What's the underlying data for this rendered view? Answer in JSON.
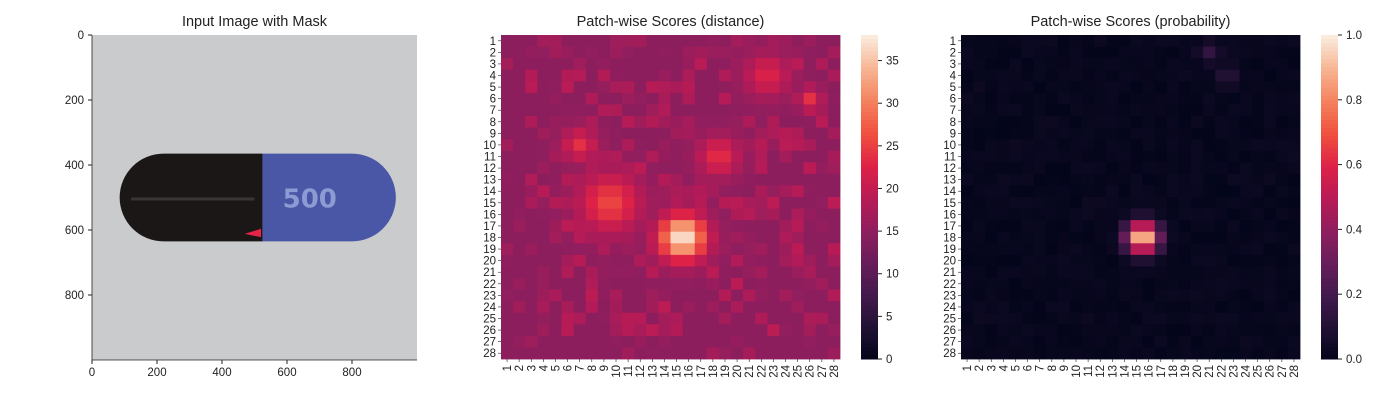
{
  "colors": {
    "background": "#ffffff",
    "axis": "#222222",
    "capsule_black": "#1c1717",
    "capsule_blue": "#4a56a6",
    "imprint": "#8c9bd2",
    "mask_mark": "#e8234a"
  },
  "chart_data": [
    {
      "type": "image",
      "title": "Input Image with Mask",
      "xticks": [
        0,
        200,
        400,
        600,
        800
      ],
      "yticks": [
        0,
        200,
        400,
        600,
        800
      ],
      "xlim": [
        0,
        1000
      ],
      "ylim": [
        1000,
        0
      ],
      "imprint_text": "500"
    },
    {
      "type": "heatmap",
      "title": "Patch-wise Scores (distance)",
      "rows": 28,
      "cols": 28,
      "colorbar": {
        "ticks": [
          0,
          5,
          10,
          15,
          20,
          25,
          30,
          35
        ],
        "range": [
          0,
          38
        ]
      },
      "colormap": "rocket",
      "baseline": 15,
      "hotspots": [
        {
          "row": 18,
          "col": 15.5,
          "peak": 38,
          "spread": 1.4
        },
        {
          "row": 15,
          "col": 9.5,
          "peak": 26,
          "spread": 1.8
        },
        {
          "row": 11,
          "col": 18.5,
          "peak": 24,
          "spread": 1.2
        },
        {
          "row": 10,
          "col": 7,
          "peak": 24,
          "spread": 1.0
        },
        {
          "row": 4,
          "col": 22.5,
          "peak": 23,
          "spread": 1.3
        },
        {
          "row": 6,
          "col": 26,
          "peak": 24,
          "spread": 0.7
        }
      ]
    },
    {
      "type": "heatmap",
      "title": "Patch-wise Scores (probability)",
      "rows": 28,
      "cols": 28,
      "colorbar": {
        "ticks": [
          "0.0",
          "0.2",
          "0.4",
          "0.6",
          "0.8",
          "1.0"
        ],
        "range": [
          0,
          1
        ]
      },
      "colormap": "rocket",
      "baseline": 0.02,
      "hotspots": [
        {
          "row": 18,
          "col": 15.5,
          "peak": 1.0,
          "spread": 0.95
        },
        {
          "row": 2,
          "col": 21,
          "peak": 0.15,
          "spread": 0.7
        },
        {
          "row": 4,
          "col": 22.5,
          "peak": 0.12,
          "spread": 0.8
        }
      ]
    }
  ]
}
